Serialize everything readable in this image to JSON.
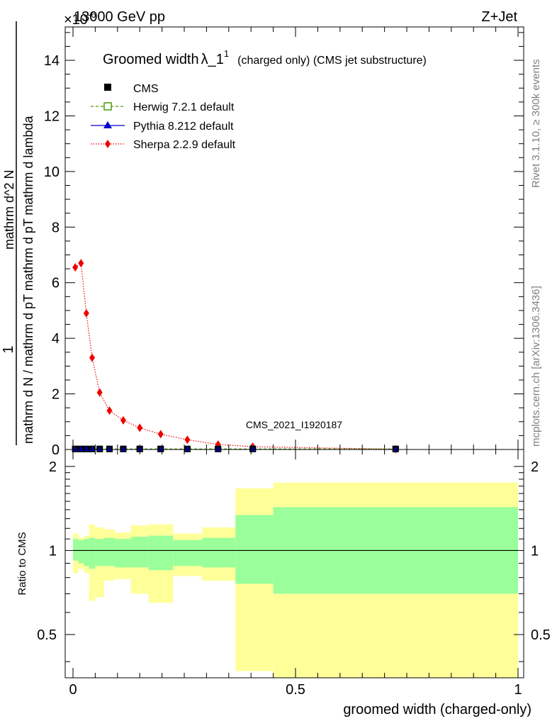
{
  "header": {
    "energy_label": "13000 GeV pp",
    "process_label": "Z+Jet",
    "y_multiplier": "×10",
    "y_multiplier_exp": "-6"
  },
  "side_labels": {
    "rivet": "Rivet 3.1.10, ≥ 300k events",
    "mcplots": "mcplots.cern.ch [arXiv:1306.3436]"
  },
  "watermark": "CMS_2021_I1920187",
  "colors": {
    "cms": "#000000",
    "herwig": "#4d9a0c",
    "pythia": "#0000cc",
    "sherpa": "#ee0000",
    "band_inner": "#9aff9a",
    "band_outer": "#ffff9a"
  },
  "chart_data": [
    {
      "type": "scatter",
      "title_main": "Groomed width",
      "title_lambda": "λ_1",
      "title_sup": "1",
      "title_suffix": "(charged only) (CMS jet substructure)",
      "ylabel_top": "1",
      "ylabel_den": "mathrm d N / mathrm d p_T mathrm d p_T mathrm d lambda",
      "ylabel_num": "mathrm d^2 N",
      "ylabel_text": "mathrm d N / mathrm d pT mathrm d pT mathrm d lambda",
      "xlim": [
        0,
        1
      ],
      "ylim": [
        0,
        15.2
      ],
      "yticks": [
        0,
        2,
        4,
        6,
        8,
        10,
        12,
        14
      ],
      "legend": [
        {
          "key": "cms",
          "label": "CMS"
        },
        {
          "key": "herwig",
          "label": "Herwig 7.2.1 default"
        },
        {
          "key": "pythia",
          "label": "Pythia 8.212 default"
        },
        {
          "key": "sherpa",
          "label": "Sherpa 2.2.9 default"
        }
      ],
      "x": [
        0.005,
        0.018,
        0.03,
        0.043,
        0.06,
        0.082,
        0.113,
        0.15,
        0.197,
        0.257,
        0.326,
        0.404,
        0.725
      ],
      "series": [
        {
          "name": "CMS",
          "values": [
            0.02,
            0.02,
            0.02,
            0.02,
            0.02,
            0.02,
            0.02,
            0.02,
            0.02,
            0.02,
            0.02,
            0.02,
            0.02
          ]
        },
        {
          "name": "Herwig 7.2.1 default",
          "values": [
            0.02,
            0.02,
            0.02,
            0.02,
            0.02,
            0.02,
            0.02,
            0.02,
            0.02,
            0.02,
            0.02,
            0.02,
            0.02
          ]
        },
        {
          "name": "Pythia 8.212 default",
          "values": [
            0.02,
            0.02,
            0.02,
            0.02,
            0.02,
            0.02,
            0.02,
            0.02,
            0.02,
            0.02,
            0.02,
            0.02,
            0.02
          ]
        },
        {
          "name": "Sherpa 2.2.9 default",
          "values": [
            6.55,
            6.7,
            4.9,
            3.3,
            2.05,
            1.4,
            1.05,
            0.78,
            0.55,
            0.35,
            0.18,
            0.1,
            0.01
          ]
        }
      ]
    },
    {
      "type": "area",
      "ylabel": "Ratio to CMS",
      "xlabel": "groomed width (charged-only)",
      "xlim": [
        0,
        1
      ],
      "ylim": [
        0.35,
        2.3
      ],
      "yticks": [
        0.5,
        1,
        2
      ],
      "ytick_labels": [
        "0.5",
        "1",
        "2"
      ],
      "xticks": [
        0,
        0.5,
        1
      ],
      "xtick_labels": [
        "0",
        "0.5",
        "1"
      ],
      "reference": 1,
      "bins": [
        {
          "x0": 0.0,
          "x1": 0.012,
          "inner_lo": 0.92,
          "inner_hi": 1.1,
          "outer_lo": 0.83,
          "outer_hi": 1.15
        },
        {
          "x0": 0.012,
          "x1": 0.024,
          "inner_lo": 0.9,
          "inner_hi": 1.09,
          "outer_lo": 0.86,
          "outer_hi": 1.11
        },
        {
          "x0": 0.024,
          "x1": 0.036,
          "inner_lo": 0.88,
          "inner_hi": 1.1,
          "outer_lo": 0.83,
          "outer_hi": 1.13
        },
        {
          "x0": 0.036,
          "x1": 0.05,
          "inner_lo": 0.86,
          "inner_hi": 1.11,
          "outer_lo": 0.66,
          "outer_hi": 1.24
        },
        {
          "x0": 0.05,
          "x1": 0.07,
          "inner_lo": 0.88,
          "inner_hi": 1.1,
          "outer_lo": 0.68,
          "outer_hi": 1.21
        },
        {
          "x0": 0.07,
          "x1": 0.094,
          "inner_lo": 0.88,
          "inner_hi": 1.11,
          "outer_lo": 0.78,
          "outer_hi": 1.19
        },
        {
          "x0": 0.094,
          "x1": 0.13,
          "inner_lo": 0.87,
          "inner_hi": 1.1,
          "outer_lo": 0.79,
          "outer_hi": 1.16
        },
        {
          "x0": 0.13,
          "x1": 0.17,
          "inner_lo": 0.87,
          "inner_hi": 1.12,
          "outer_lo": 0.7,
          "outer_hi": 1.23
        },
        {
          "x0": 0.17,
          "x1": 0.225,
          "inner_lo": 0.85,
          "inner_hi": 1.13,
          "outer_lo": 0.65,
          "outer_hi": 1.24
        },
        {
          "x0": 0.225,
          "x1": 0.29,
          "inner_lo": 0.88,
          "inner_hi": 1.09,
          "outer_lo": 0.81,
          "outer_hi": 1.15
        },
        {
          "x0": 0.29,
          "x1": 0.365,
          "inner_lo": 0.87,
          "inner_hi": 1.11,
          "outer_lo": 0.78,
          "outer_hi": 1.21
        },
        {
          "x0": 0.365,
          "x1": 0.45,
          "inner_lo": 0.76,
          "inner_hi": 1.34,
          "outer_lo": 0.37,
          "outer_hi": 1.67
        },
        {
          "x0": 0.45,
          "x1": 1.0,
          "inner_lo": 0.7,
          "inner_hi": 1.43,
          "outer_lo": 0.35,
          "outer_hi": 1.75
        }
      ]
    }
  ]
}
